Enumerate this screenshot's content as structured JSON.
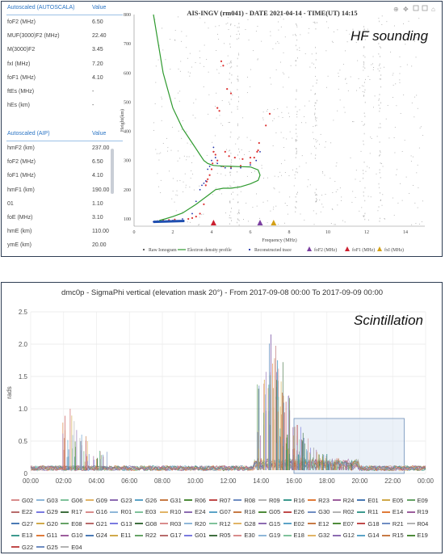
{
  "hf": {
    "overlay_label": "HF sounding",
    "chart_title": "AIS-INGV (rm041) - DATE 2021-04-14 - TIME(UT) 14:15",
    "autoscala_table": {
      "header": "Autoscaled (AUTOSCALA)",
      "value_header": "Value",
      "rows": [
        {
          "label": "foF2 (MHz)",
          "value": "6.50"
        },
        {
          "label": "MUF(3000)F2 (MHz)",
          "value": "22.40"
        },
        {
          "label": "M(3000)F2",
          "value": "3.45"
        },
        {
          "label": "fxI (MHz)",
          "value": "7.20"
        },
        {
          "label": "foF1 (MHz)",
          "value": "4.10"
        },
        {
          "label": "ftEs (MHz)",
          "value": "-"
        },
        {
          "label": "hEs (km)",
          "value": "-"
        }
      ]
    },
    "aip_table": {
      "header": "Autoscaled (AIP)",
      "value_header": "Value",
      "rows": [
        {
          "label": "hmF2 (km)",
          "value": "237.00"
        },
        {
          "label": "foF2 (MHz)",
          "value": "6.50"
        },
        {
          "label": "foF1 (MHz)",
          "value": "4.10"
        },
        {
          "label": "hmF1 (km)",
          "value": "190.00"
        },
        {
          "label": "01",
          "value": "1.10"
        },
        {
          "label": "foE (MHz)",
          "value": "3.10"
        },
        {
          "label": "hmE (km)",
          "value": "110.00"
        },
        {
          "label": "ymE (km)",
          "value": "20.00"
        }
      ]
    },
    "toolbar_icons": [
      "zoom-icon",
      "zoom-in-icon",
      "pan-icon",
      "reset-icon",
      "home-icon"
    ]
  },
  "chart_data": [
    {
      "type": "scatter",
      "title": "AIS-INGV (rm041) - DATE 2021-04-14 - TIME(UT) 14:15",
      "xlabel": "Frequency (MHz)",
      "ylabel": "Height(km)",
      "xlim": [
        0,
        15
      ],
      "ylim": [
        75,
        800
      ],
      "x_ticks": [
        0,
        2,
        4,
        6,
        8,
        10,
        12,
        14
      ],
      "y_ticks": [
        100,
        200,
        300,
        400,
        500,
        600,
        700,
        800
      ],
      "series": [
        {
          "name": "Raw Ionogram",
          "color": "#555555"
        },
        {
          "name": "Electron density profile",
          "color": "#2e9a2e",
          "x": [
            1.0,
            1.5,
            2.0,
            2.5,
            3.0,
            3.2,
            3.4,
            3.6,
            3.8,
            4.0,
            4.1,
            4.3,
            4.6,
            5.0,
            5.5,
            6.0,
            6.4,
            6.5,
            6.4,
            6.0,
            5.5,
            5.0,
            4.6,
            4.2,
            3.8,
            3.2,
            2.5,
            2.0,
            1.6,
            1.3
          ],
          "y": [
            800,
            600,
            480,
            410,
            360,
            340,
            320,
            300,
            290,
            285,
            283,
            282,
            281,
            280,
            279,
            278,
            268,
            250,
            232,
            220,
            210,
            205,
            205,
            200,
            180,
            150,
            120,
            108,
            100,
            95
          ]
        },
        {
          "name": "Reconstructed trace",
          "color": "#1f3f99",
          "x": [
            1.0,
            1.5,
            2.0,
            2.5,
            3.0,
            3.2,
            3.4,
            3.5,
            3.6,
            3.7,
            3.8,
            3.9,
            4.0,
            4.1,
            4.2,
            4.3,
            4.5,
            4.7,
            5.0,
            5.5,
            6.0,
            6.3,
            6.5
          ],
          "y": [
            90,
            92,
            95,
            100,
            118,
            160,
            200,
            215,
            222,
            230,
            270,
            280,
            300,
            345,
            310,
            290,
            280,
            275,
            273,
            275,
            285,
            300,
            330
          ]
        },
        {
          "name": "foF2 (MHz)",
          "x": 6.5,
          "color": "#7b3fa1"
        },
        {
          "name": "foF1 (MHz)",
          "x": 4.1,
          "color": "#cc2030"
        },
        {
          "name": "fxI (MHz)",
          "x": 7.2,
          "color": "#d4a017"
        }
      ]
    },
    {
      "type": "line",
      "title": "dmc0p - SigmaPhi vertical (elevation mask 20°) - From 2017-09-08 00:00 To 2017-09-09 00:00",
      "ylabel": "rads",
      "xlim": [
        0,
        24
      ],
      "ylim": [
        0,
        2.5
      ],
      "x_ticks": [
        "00:00",
        "02:00",
        "04:00",
        "06:00",
        "08:00",
        "10:00",
        "12:00",
        "14:00",
        "16:00",
        "18:00",
        "20:00",
        "22:00",
        "00:00"
      ],
      "y_ticks": [
        "0",
        "0.5",
        "1.0",
        "1.5",
        "2.0",
        "2.5"
      ],
      "peaks": [
        {
          "x": 2.4,
          "y": 1.0
        },
        {
          "x": 3.1,
          "y": 0.6
        },
        {
          "x": 4.2,
          "y": 0.35
        },
        {
          "x": 14.2,
          "y": 1.45
        },
        {
          "x": 14.6,
          "y": 2.15
        },
        {
          "x": 15.0,
          "y": 1.75
        },
        {
          "x": 15.3,
          "y": 1.25
        },
        {
          "x": 15.6,
          "y": 0.6
        },
        {
          "x": 16.2,
          "y": 0.75
        },
        {
          "x": 16.6,
          "y": 0.55
        },
        {
          "x": 17.2,
          "y": 0.4
        },
        {
          "x": 18.0,
          "y": 0.3
        },
        {
          "x": 18.5,
          "y": 0.2
        },
        {
          "x": 19.2,
          "y": 0.15
        }
      ],
      "selection_box": {
        "x": [
          16.0,
          22.7
        ],
        "y": [
          0,
          0.85
        ]
      },
      "legend": [
        "G02",
        "G03",
        "G06",
        "G09",
        "G23",
        "G26",
        "G31",
        "R06",
        "R07",
        "R08",
        "R09",
        "R16",
        "R23",
        "R24",
        "E01",
        "E05",
        "E09",
        "E22",
        "G29",
        "R17",
        "G16",
        "R01",
        "E03",
        "R10",
        "E24",
        "G07",
        "R18",
        "G05",
        "E26",
        "G30",
        "R02",
        "R11",
        "E14",
        "R19",
        "G27",
        "G20",
        "E08",
        "G21",
        "G13",
        "G08",
        "R03",
        "R20",
        "R12",
        "G28",
        "G15",
        "E02",
        "E12",
        "E07",
        "G18",
        "R21",
        "R04",
        "E13",
        "G11",
        "G10",
        "G24",
        "E11",
        "R22",
        "G17",
        "G01",
        "R05",
        "E30",
        "G19",
        "E18",
        "G32",
        "G12",
        "G14",
        "R15",
        "E19",
        "G22",
        "G25",
        "E04"
      ]
    }
  ],
  "scintillation": {
    "overlay_label": "Scintillation",
    "colors": [
      "#d98c8c",
      "#8fb7d9",
      "#7fc29b",
      "#e1b466",
      "#8c6bb1",
      "#5ba3c7",
      "#c77a45",
      "#4e8b3a",
      "#c04a4a",
      "#6f8dc2",
      "#b3b3b3",
      "#3d9a8f",
      "#e07b39",
      "#9c5d9c",
      "#4a7ab5",
      "#d0a94a",
      "#66a366",
      "#b86b6b",
      "#7a7ae0",
      "#3f6f3f"
    ]
  },
  "hf_legend": [
    "Raw Ionogram",
    "Electron density profile",
    "Reconstructed trace",
    "foF2 (MHz)",
    "foF1 (MHz)",
    "fxI (MHz)"
  ]
}
